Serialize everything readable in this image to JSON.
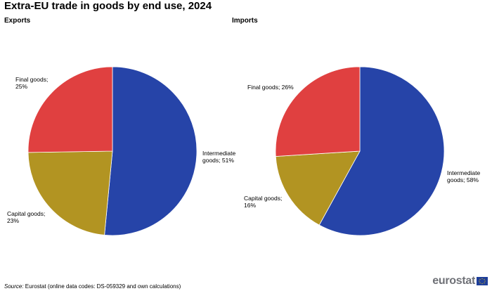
{
  "title": "Extra-EU trade in goods by end use, 2024",
  "source": {
    "label": "Source:",
    "text": " Eurostat (online data codes: DS-059329 and own calculations)"
  },
  "logo": {
    "text": "eurostat"
  },
  "chart_data": [
    {
      "type": "pie",
      "title": "Exports",
      "slices": [
        {
          "name": "Intermediate goods",
          "value": 51,
          "color": "#2644a8",
          "label_lines": [
            "Intermediate",
            "goods; 51%"
          ]
        },
        {
          "name": "Capital goods",
          "value": 23,
          "color": "#b29422",
          "label_lines": [
            "Capital goods;",
            "23%"
          ]
        },
        {
          "name": "Final goods",
          "value": 25,
          "color": "#e04040",
          "label_lines": [
            "Final goods;",
            "25%"
          ]
        }
      ]
    },
    {
      "type": "pie",
      "title": "Imports",
      "slices": [
        {
          "name": "Intermediate goods",
          "value": 58,
          "color": "#2644a8",
          "label_lines": [
            "Intermediate",
            "goods; 58%"
          ]
        },
        {
          "name": "Capital goods",
          "value": 16,
          "color": "#b29422",
          "label_lines": [
            "Capital goods;",
            "16%"
          ]
        },
        {
          "name": "Final goods",
          "value": 26,
          "color": "#e04040",
          "label_lines": [
            "Final goods; 26%"
          ]
        }
      ]
    }
  ]
}
